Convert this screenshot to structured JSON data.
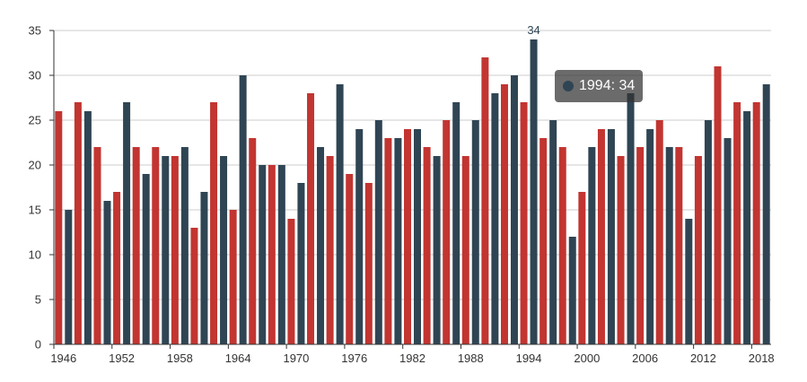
{
  "chart_data": {
    "type": "bar",
    "title": "",
    "xlabel": "",
    "ylabel": "",
    "ylim": [
      0,
      35
    ],
    "yticks": [
      0,
      5,
      10,
      15,
      20,
      25,
      30,
      35
    ],
    "grid": true,
    "x_tick_labels": [
      "1946",
      "1952",
      "1958",
      "1964",
      "1970",
      "1976",
      "1982",
      "1988",
      "1994",
      "2000",
      "2006",
      "2012",
      "2018"
    ],
    "categories": [
      1946,
      1948,
      1950,
      1952,
      1954,
      1956,
      1958,
      1960,
      1962,
      1964,
      1966,
      1968,
      1970,
      1972,
      1974,
      1976,
      1978,
      1980,
      1982,
      1984,
      1986,
      1988,
      1990,
      1992,
      1994,
      1996,
      1998,
      2000,
      2002,
      2004,
      2006,
      2008,
      2010,
      2012,
      2014,
      2016,
      2018
    ],
    "series": [
      {
        "color": "#c23531",
        "values": [
          26,
          27,
          22,
          17,
          22,
          22,
          21,
          13,
          27,
          15,
          23,
          20,
          14,
          28,
          21,
          19,
          18,
          23,
          24,
          22,
          25,
          21,
          32,
          29,
          27,
          23,
          22,
          17,
          24,
          21,
          22,
          25,
          22,
          21,
          31,
          27,
          27
        ]
      },
      {
        "color": "#2f4554",
        "values": [
          15,
          26,
          16,
          27,
          19,
          21,
          22,
          17,
          21,
          30,
          20,
          20,
          18,
          22,
          29,
          24,
          25,
          23,
          24,
          21,
          27,
          25,
          28,
          30,
          34,
          25,
          12,
          22,
          24,
          28,
          24,
          22,
          14,
          25,
          23,
          26,
          29
        ]
      }
    ],
    "max_label": {
      "text": "34",
      "category": 1994,
      "series_index": 1
    },
    "tooltip": {
      "text": "1994: 34",
      "dot_color": "#2f4554"
    }
  },
  "colors": {
    "axis": "#333333",
    "grid": "#cccccc",
    "max_label": "#2f4554"
  }
}
